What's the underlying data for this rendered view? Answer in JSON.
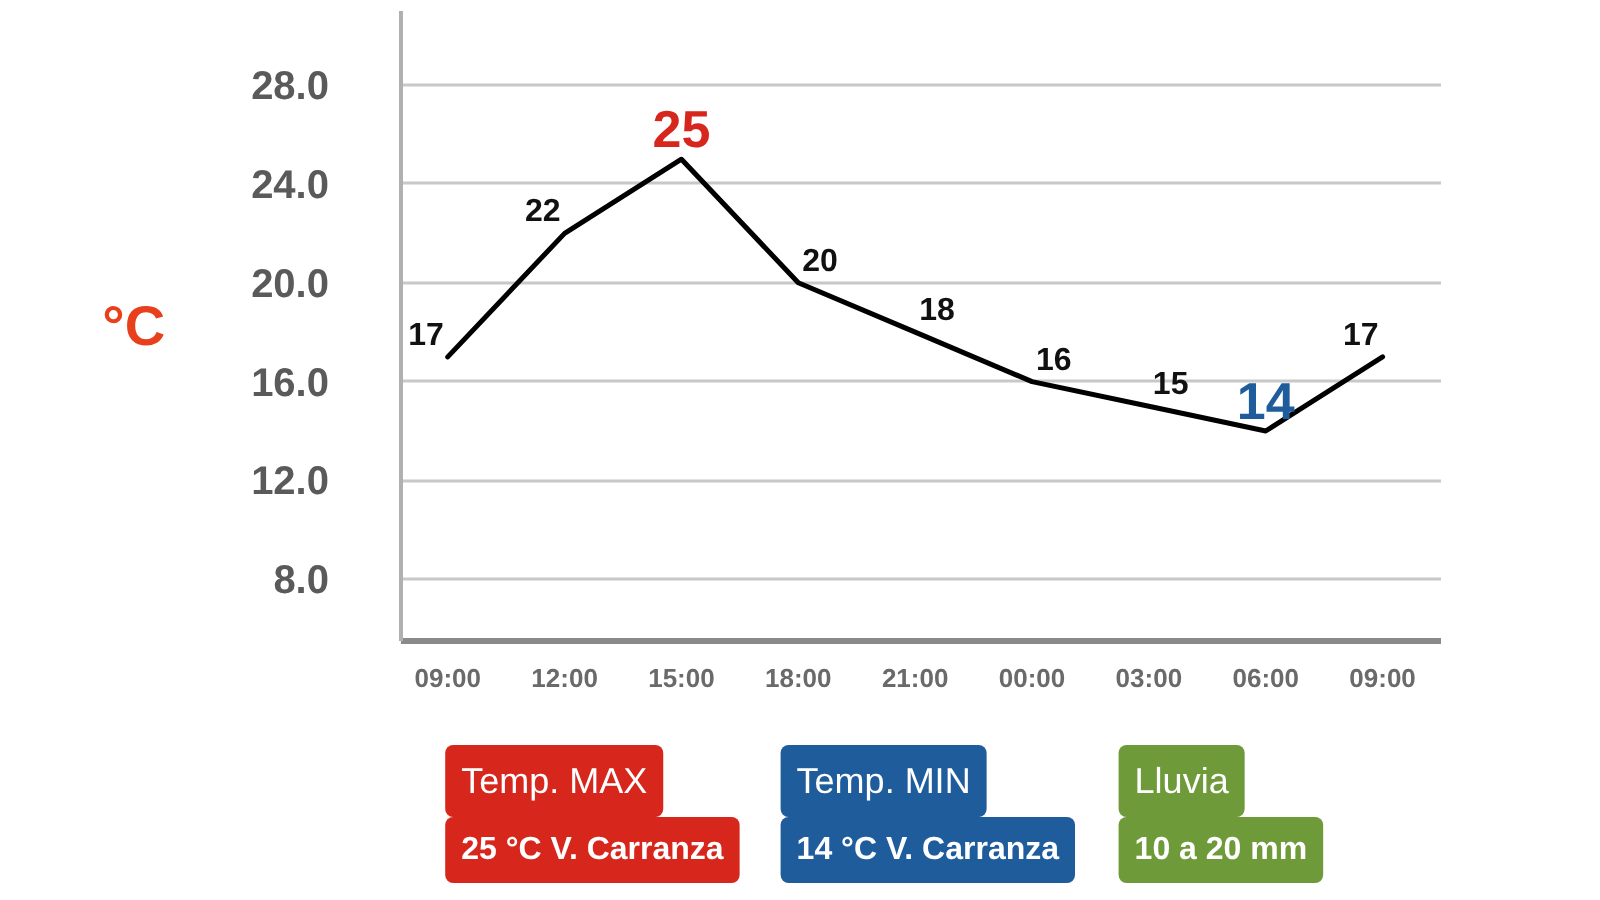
{
  "chart_data": {
    "type": "line",
    "ylabel": "°C",
    "categories": [
      "09:00",
      "12:00",
      "15:00",
      "18:00",
      "21:00",
      "00:00",
      "03:00",
      "06:00",
      "09:00"
    ],
    "series": [
      {
        "color": "#000000",
        "values": [
          17,
          22,
          25,
          20,
          18,
          16,
          15,
          14,
          17
        ]
      }
    ],
    "ylim": [
      5.5,
      31
    ],
    "yticks": [
      {
        "value": 8,
        "label": "8.0"
      },
      {
        "value": 12,
        "label": "12.0"
      },
      {
        "value": 16,
        "label": "16.0"
      },
      {
        "value": 20,
        "label": "20.0"
      },
      {
        "value": 24,
        "label": "24.0"
      },
      {
        "value": 28,
        "label": "28.0"
      }
    ],
    "grid": "y",
    "line_style": "solid",
    "data_labels": true,
    "annotations": [
      "Temp. MAX",
      "25 °C V. Carranza",
      "Temp. MIN",
      "14 °C V. Carranza",
      "Lluvia",
      "10 a 20 mm"
    ]
  }
}
